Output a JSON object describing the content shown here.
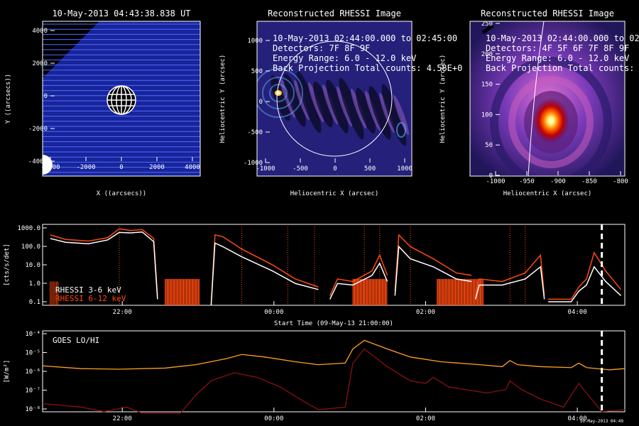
{
  "panels": [
    {
      "title": "10-May-2013 04:43:38.838 UT",
      "xlabel": "X ((arcsecs))",
      "ylabel": "Y ((arcsecs))",
      "xticks": [
        "-4000",
        "-2000",
        "0",
        "2000",
        "4000"
      ],
      "yticks": [
        "4000",
        "2000",
        "0",
        "-2000",
        "-4000"
      ]
    },
    {
      "title": "Reconstructed RHESSI Image",
      "xlabel": "Heliocentric X (arcsec)",
      "ylabel": "Heliocentric Y (arcsec)",
      "xticks": [
        "-1000",
        "-500",
        "0",
        "500",
        "1000"
      ],
      "yticks": [
        "1000",
        "500",
        "0",
        "-500",
        "-1000"
      ],
      "lines": [
        "10-May-2013 02:44:00.000 to 02:45:00",
        "Detectors: 7F 8F 9F",
        "Energy Range: 6.0 - 12.0 keV",
        "Back Projection    Total counts: 4.58E+0"
      ]
    },
    {
      "title": "Reconstructed RHESSI Image",
      "xlabel": "Heliocentric X (arcsec)",
      "ylabel": "Heliocentric Y (arcsec)",
      "xticks": [
        "-1000",
        "-950",
        "-900",
        "-850",
        "-800"
      ],
      "yticks": [
        "250",
        "200",
        "150",
        "100",
        "50",
        "0"
      ],
      "lines": [
        "10-May-2013 02:44:00.000 to 02:45:00",
        "Detectors: 4F 5F 6F 7F 8F 9F",
        "Energy Range: 6.0 - 12.0 keV",
        "Back Projection    Total counts:"
      ]
    }
  ],
  "rhessi": {
    "ylabel": "[cts/s/det]",
    "yticks": [
      "1000.0",
      "100.0",
      "10.0",
      "1.0",
      "0.1"
    ],
    "xticks": [
      "22:00",
      "00:00",
      "02:00",
      "04:00"
    ],
    "xlabel": "Start Time (09-May-13 21:00:00)",
    "legend": [
      "RHESSI  3-6 keV",
      "RHESSI 6-12 keV"
    ],
    "colors": {
      "low": "#ffffff",
      "high": "#ff4a10"
    }
  },
  "goes": {
    "label": "GOES LO/HI",
    "ylabel": "[W/m²]",
    "yticks": [
      "10⁻⁴",
      "10⁻⁵",
      "10⁻⁶",
      "10⁻⁷",
      "10⁻⁸"
    ],
    "xticks": [
      "22:00",
      "00:00",
      "02:00",
      "04:00"
    ],
    "xlabel": "Start Time (09-May-13 21:00:00)",
    "stamp": "10-May-2013 04:49",
    "colors": {
      "lo": "#ffa020",
      "hi": "#8a1010"
    }
  },
  "chart_data": [
    {
      "type": "line",
      "title": "RHESSI",
      "x_unit": "hours since 09-May-13 21:00:00",
      "y_scale": "log",
      "ylim": [
        0.1,
        1000
      ],
      "xlim": [
        0,
        7.6
      ],
      "series": [
        {
          "name": "RHESSI  3-6 keV",
          "x": [
            0.1,
            0.3,
            0.6,
            0.9,
            1.0,
            1.2,
            1.4,
            1.5,
            1.6
          ],
          "y": [
            300,
            200,
            150,
            250,
            400,
            500,
            400,
            250,
            10
          ]
        },
        {
          "name": "RHESSI 6-12 keV",
          "x": [
            0.1,
            0.3,
            0.6,
            0.9,
            1.0,
            1.2,
            1.4,
            1.5,
            1.6
          ],
          "y": [
            200,
            150,
            150,
            300,
            500,
            700,
            500,
            300,
            5
          ]
        }
      ],
      "markers": {
        "dashed_vertical": [
          7.3
        ]
      }
    },
    {
      "type": "line",
      "title": "GOES LO/HI",
      "y_scale": "log",
      "ylim": [
        1e-08,
        0.0001
      ],
      "series": [
        {
          "name": "LO",
          "x": [
            0,
            0.5,
            1.5,
            2.0,
            2.6,
            3.0,
            3.5,
            4.0,
            4.5,
            5.0,
            6.0,
            7.0,
            7.5
          ],
          "y": [
            2e-06,
            1.5e-06,
            1.6e-06,
            2e-06,
            8e-06,
            6e-06,
            3e-06,
            4e-05,
            1e-05,
            3e-06,
            2e-06,
            1.6e-06,
            1.5e-06
          ]
        },
        {
          "name": "HI",
          "x": [
            0,
            0.5,
            1.5,
            2.0,
            2.6,
            3.0,
            3.5,
            4.0,
            4.5,
            5.0,
            6.0,
            7.0,
            7.5
          ],
          "y": [
            3e-08,
            2e-08,
            1e-08,
            1e-08,
            1e-06,
            5e-07,
            2e-08,
            1.5e-05,
            2e-06,
            4e-07,
            3e-07,
            1e-08,
            1e-08
          ]
        }
      ]
    }
  ]
}
